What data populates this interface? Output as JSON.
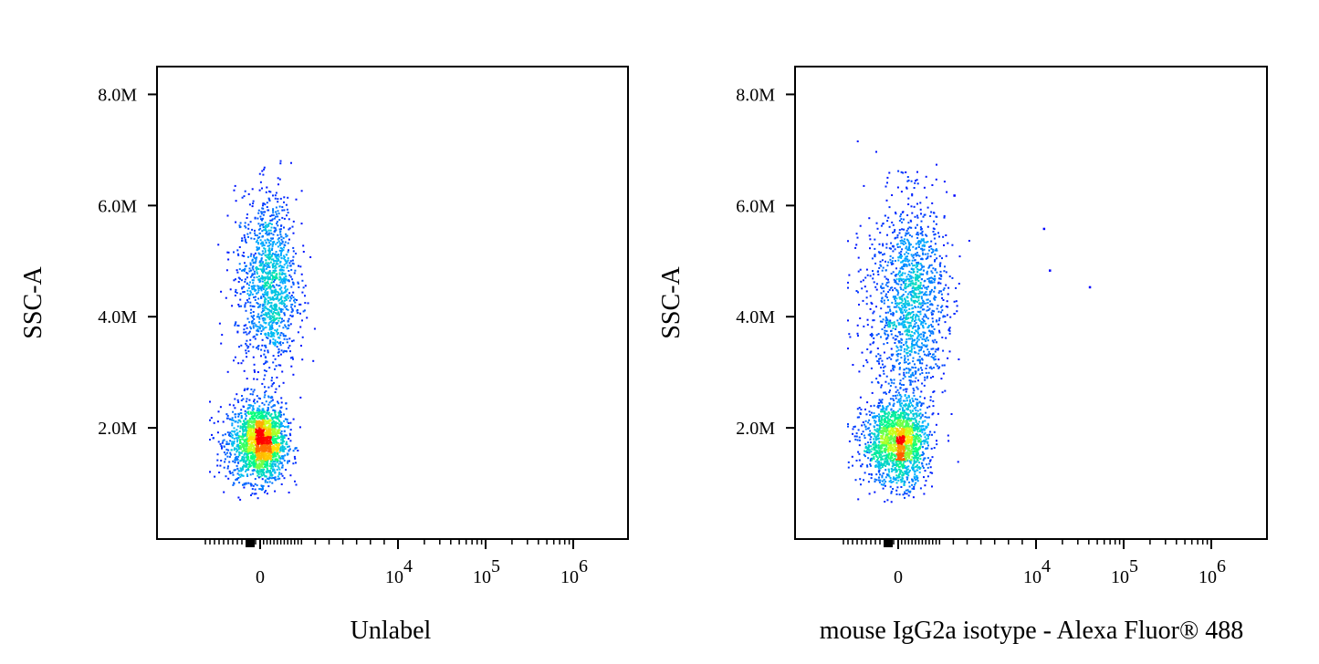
{
  "chart_data": [
    {
      "type": "scatter",
      "subtype": "flow-cytometry-density-dot-plot",
      "title": "",
      "xlabel": "Unlabel",
      "ylabel": "SSC-A",
      "x_scale": "biexponential",
      "xlim": [
        -3000,
        1500000
      ],
      "ylim": [
        0,
        8500000
      ],
      "x_ticks": [
        {
          "value": 0,
          "label": "0",
          "exp": ""
        },
        {
          "value": 10000,
          "label": "10",
          "exp": "4"
        },
        {
          "value": 100000,
          "label": "10",
          "exp": "5"
        },
        {
          "value": 1000000,
          "label": "10",
          "exp": "6"
        }
      ],
      "y_ticks": [
        {
          "value": 2000000,
          "label": "2.0M"
        },
        {
          "value": 4000000,
          "label": "4.0M"
        },
        {
          "value": 6000000,
          "label": "6.0M"
        },
        {
          "value": 8000000,
          "label": "8.0M"
        }
      ],
      "density_colormap": [
        "#0000ff",
        "#00b4ff",
        "#00ff80",
        "#ffff00",
        "#ff0000"
      ],
      "populations": [
        {
          "name": "",
          "x_center": 0,
          "y_center": 1750000,
          "x_spread": 900,
          "y_spread": 350000,
          "weight": 0.6
        },
        {
          "name": "",
          "x_center": 600,
          "y_center": 4600000,
          "x_spread": 1000,
          "y_spread": 800000,
          "weight": 0.4
        }
      ],
      "grid": false,
      "legend": "none"
    },
    {
      "type": "scatter",
      "subtype": "flow-cytometry-density-dot-plot",
      "title": "",
      "xlabel": "mouse IgG2a isotype - Alexa Fluor® 488",
      "ylabel": "SSC-A",
      "x_scale": "biexponential",
      "xlim": [
        -3000,
        1500000
      ],
      "ylim": [
        0,
        8500000
      ],
      "x_ticks": [
        {
          "value": 0,
          "label": "0",
          "exp": ""
        },
        {
          "value": 10000,
          "label": "10",
          "exp": "4"
        },
        {
          "value": 100000,
          "label": "10",
          "exp": "5"
        },
        {
          "value": 1000000,
          "label": "10",
          "exp": "6"
        }
      ],
      "y_ticks": [
        {
          "value": 2000000,
          "label": "2.0M"
        },
        {
          "value": 4000000,
          "label": "4.0M"
        },
        {
          "value": 6000000,
          "label": "6.0M"
        },
        {
          "value": 8000000,
          "label": "8.0M"
        }
      ],
      "density_colormap": [
        "#0000ff",
        "#00b4ff",
        "#00ff80",
        "#ffff00",
        "#ff0000"
      ],
      "populations": [
        {
          "name": "",
          "x_center": 0,
          "y_center": 1750000,
          "x_spread": 1000,
          "y_spread": 380000,
          "weight": 0.55
        },
        {
          "name": "",
          "x_center": 800,
          "y_center": 4300000,
          "x_spread": 1300,
          "y_spread": 900000,
          "weight": 0.45
        }
      ],
      "outliers": [
        {
          "x": 4000,
          "y": 6200000
        },
        {
          "x": 12000,
          "y": 5600000
        },
        {
          "x": 14000,
          "y": 4850000
        },
        {
          "x": 40000,
          "y": 4550000
        }
      ],
      "grid": false,
      "legend": "none"
    }
  ]
}
